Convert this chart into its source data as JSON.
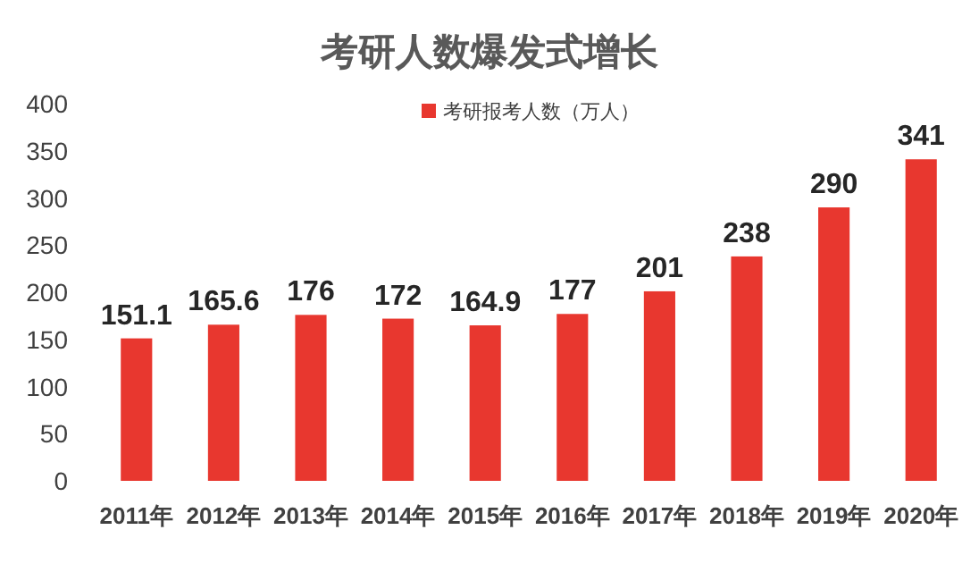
{
  "chart_data": {
    "type": "bar",
    "title": "考研人数爆发式增长",
    "categories": [
      "2011年",
      "2012年",
      "2013年",
      "2014年",
      "2015年",
      "2016年",
      "2017年",
      "2018年",
      "2019年",
      "2020年"
    ],
    "series": [
      {
        "name": "考研报考人数（万人）",
        "color": "#e8372f",
        "values": [
          151.1,
          165.6,
          176,
          172,
          164.9,
          177,
          201,
          238,
          290,
          341
        ]
      }
    ],
    "ylim": [
      0,
      400
    ],
    "yticks": [
      0,
      50,
      100,
      150,
      200,
      250,
      300,
      350,
      400
    ],
    "data_labels": true,
    "legend": "top",
    "grid": false
  }
}
